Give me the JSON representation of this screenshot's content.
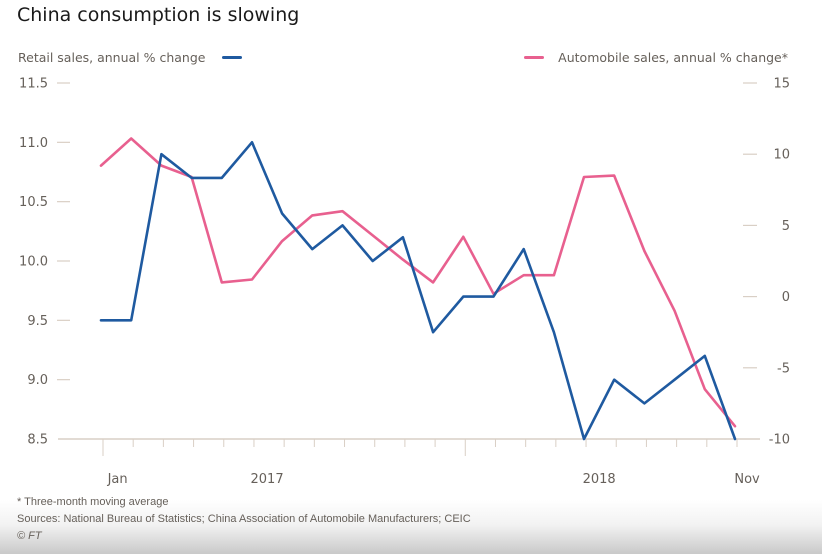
{
  "header": {
    "title": "China consumption is slowing"
  },
  "legend": {
    "left_label": "Retail sales, annual % change",
    "right_label": "Automobile sales, annual % change*"
  },
  "footer": {
    "note": "* Three-month moving average",
    "sources": "Sources: National Bureau of Statistics; China Association of Automobile Manufacturers; CEIC",
    "credit": "© FT"
  },
  "colors": {
    "retail": "#1f5aa0",
    "auto": "#e8608f",
    "grid": "#d9cfc5",
    "axis_text": "#66605a"
  },
  "chart_data": {
    "type": "line",
    "title": "China consumption is slowing",
    "x_tick_labels": [
      "Jan",
      "2017",
      "2018",
      "Nov"
    ],
    "x_tick_label_positions": [
      0.55,
      5.5,
      16.5,
      21.4
    ],
    "num_points": 22,
    "left_axis": {
      "label": "Retail sales, annual % change",
      "ylim": [
        8.5,
        11.5
      ],
      "ticks": [
        "11.5",
        "11.0",
        "10.5",
        "10.0",
        "9.5",
        "9.0",
        "8.5"
      ],
      "tick_values": [
        11.5,
        11.0,
        10.5,
        10.0,
        9.5,
        9.0,
        8.5
      ]
    },
    "right_axis": {
      "label": "Automobile sales, annual % change*",
      "ylim": [
        -10,
        15
      ],
      "ticks": [
        "15",
        "10",
        "5",
        "0",
        "-5",
        "-10"
      ],
      "tick_values": [
        15,
        10,
        5,
        0,
        -5,
        -10
      ]
    },
    "series": [
      {
        "name": "Retail sales, annual % change",
        "axis": "left",
        "values": [
          9.5,
          9.5,
          10.9,
          10.7,
          10.7,
          11.0,
          10.4,
          10.1,
          10.3,
          10.0,
          10.2,
          9.4,
          9.7,
          9.7,
          10.1,
          9.4,
          8.5,
          9.0,
          8.8,
          9.0,
          9.2,
          8.5
        ]
      },
      {
        "name": "Automobile sales, annual % change*",
        "axis": "right",
        "values": [
          9.2,
          11.1,
          9.2,
          8.4,
          1.0,
          1.2,
          3.9,
          5.7,
          6.0,
          4.3,
          2.6,
          1.0,
          4.2,
          0.2,
          1.5,
          1.5,
          8.4,
          8.5,
          3.2,
          -1.0,
          -6.5,
          -9.1
        ]
      }
    ],
    "grid": false,
    "legend": "top"
  }
}
